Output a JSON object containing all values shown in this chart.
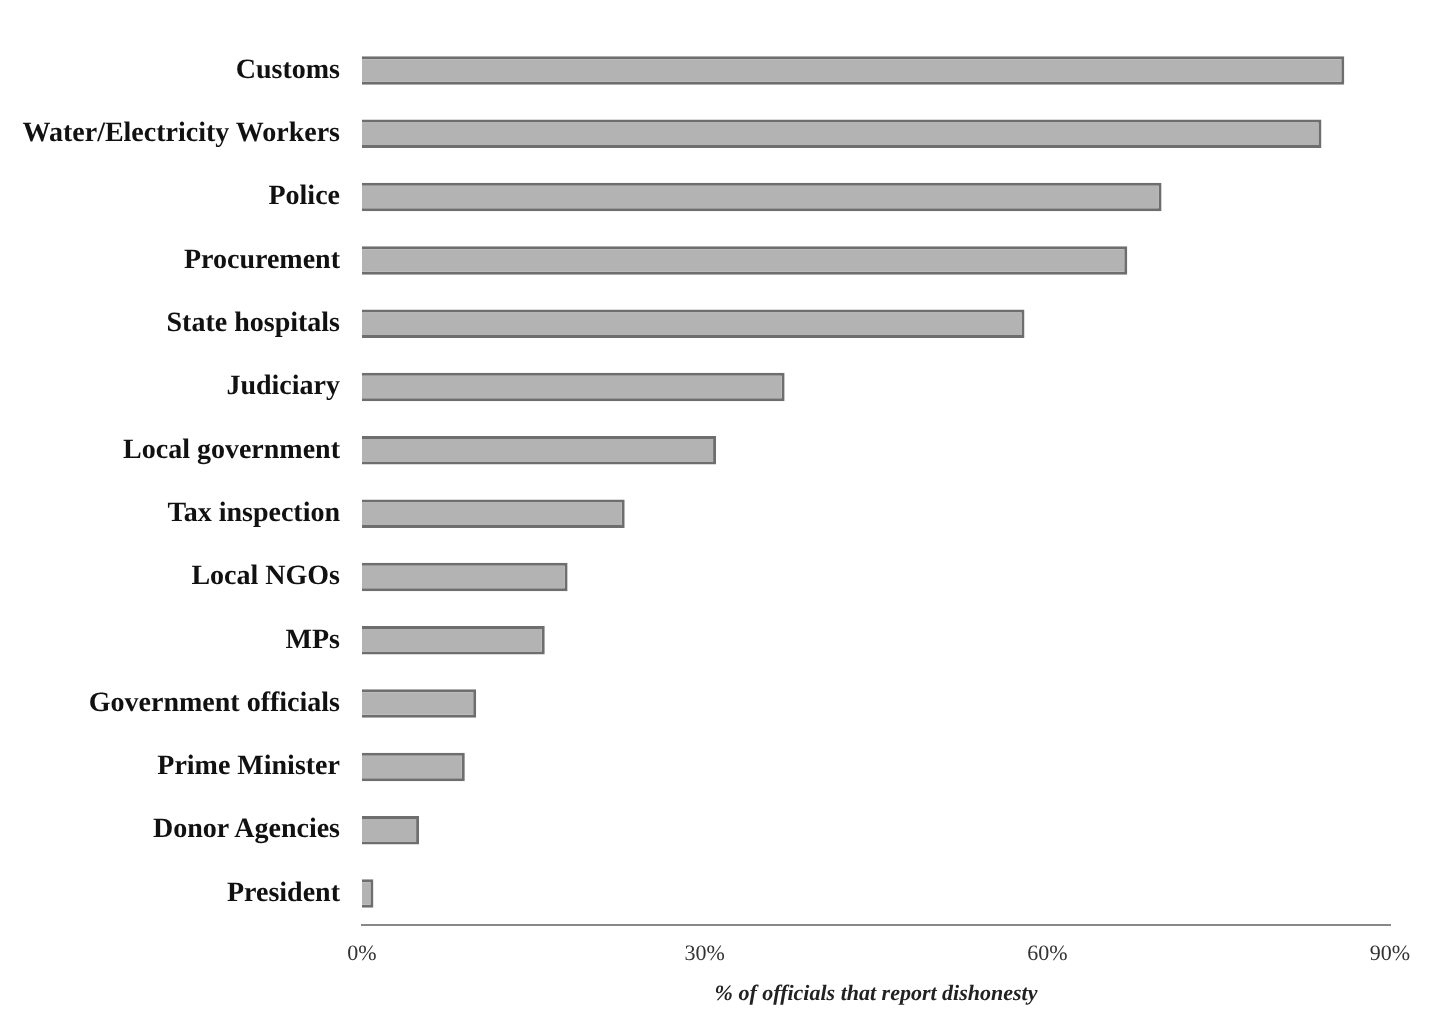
{
  "chart_data": {
    "type": "bar",
    "orientation": "horizontal",
    "xlabel": "% of officials that report dishonesty",
    "categories": [
      "Customs",
      "Water/Electricity Workers",
      "Police",
      "Procurement",
      "State hospitals",
      "Judiciary",
      "Local government",
      "Tax inspection",
      "Local NGOs",
      "MPs",
      "Government officials",
      "Prime Minister",
      "Donor Agencies",
      "President"
    ],
    "values": [
      86,
      84,
      70,
      67,
      58,
      37,
      31,
      23,
      18,
      16,
      10,
      9,
      5,
      1
    ],
    "color": "#b3b3b3",
    "xlim": [
      0,
      90
    ],
    "xticks": [
      {
        "value": 0,
        "label": "0%"
      },
      {
        "value": 30,
        "label": "30%"
      },
      {
        "value": 60,
        "label": "60%"
      },
      {
        "value": 90,
        "label": "90%"
      }
    ],
    "grid": false,
    "legend": false
  }
}
